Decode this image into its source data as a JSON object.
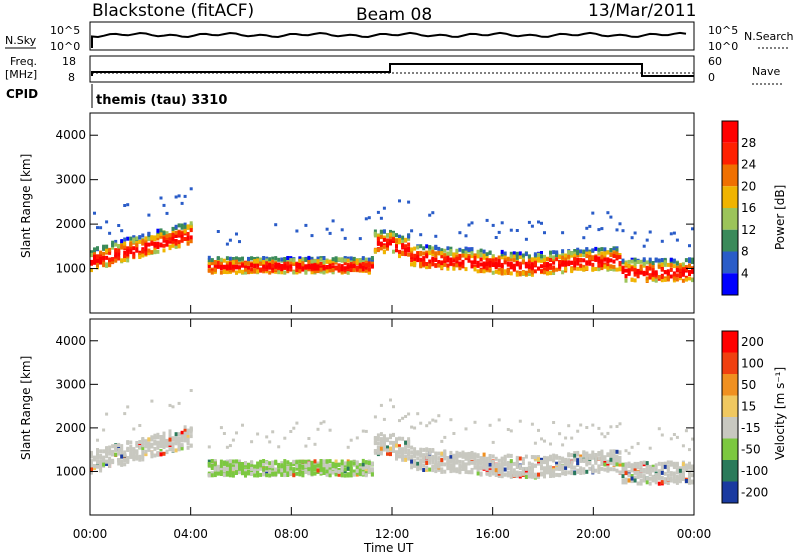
{
  "header": {
    "radar": "Blackstone (fitACF)",
    "beam": "Beam 08",
    "date": "13/Mar/2011"
  },
  "top_panels": {
    "nsky_label": "N.Sky",
    "nsky_ticks": [
      "10^5",
      "10^0"
    ],
    "nsearch_label": "N.Search",
    "freq_label_line1": "Freq.",
    "freq_label_line2": "[MHz]",
    "freq_ticks": [
      "18",
      "8"
    ],
    "nave_label": "Nave",
    "nave_ticks": [
      "60",
      "0"
    ],
    "cpid_label": "CPID",
    "cpid_value": "themis (tau) 3310"
  },
  "chart_data": [
    {
      "type": "heatmap",
      "panel": "power",
      "ylabel": "Slant Range [km]",
      "xlabel": "Time UT",
      "xlim": [
        "00:00",
        "24:00"
      ],
      "ylim": [
        0,
        4500
      ],
      "y_ticks": [
        1000,
        2000,
        3000,
        4000
      ],
      "x_ticks": [
        "00:00",
        "04:00",
        "08:00",
        "12:00",
        "16:00",
        "20:00",
        "00:00"
      ],
      "colorbar": {
        "label": "Power [dB]",
        "ticks": [
          4,
          8,
          12,
          16,
          20,
          24,
          28
        ]
      },
      "colors": [
        "#0000ff",
        "#2a5cc8",
        "#3a8a5a",
        "#9cc45a",
        "#f0b400",
        "#f07000",
        "#ff2000",
        "#ff0000"
      ]
    },
    {
      "type": "heatmap",
      "panel": "velocity",
      "ylabel": "Slant Range [km]",
      "xlabel": "Time UT",
      "xlim": [
        "00:00",
        "24:00"
      ],
      "ylim": [
        0,
        4500
      ],
      "y_ticks": [
        1000,
        2000,
        3000,
        4000
      ],
      "x_ticks": [
        "00:00",
        "04:00",
        "08:00",
        "12:00",
        "16:00",
        "20:00",
        "00:00"
      ],
      "colorbar": {
        "label": "Velocity [m s⁻¹]",
        "ticks": [
          200,
          100,
          50,
          15,
          -15,
          -50,
          -100,
          -200
        ]
      },
      "colors": [
        "#1a3aa0",
        "#2a7a5a",
        "#7cc840",
        "#c8c8c0",
        "#f0c860",
        "#f09020",
        "#f04010",
        "#ff0000"
      ]
    }
  ],
  "axis": {
    "xlabel": "Time UT",
    "ylabel": "Slant Range [km]"
  }
}
